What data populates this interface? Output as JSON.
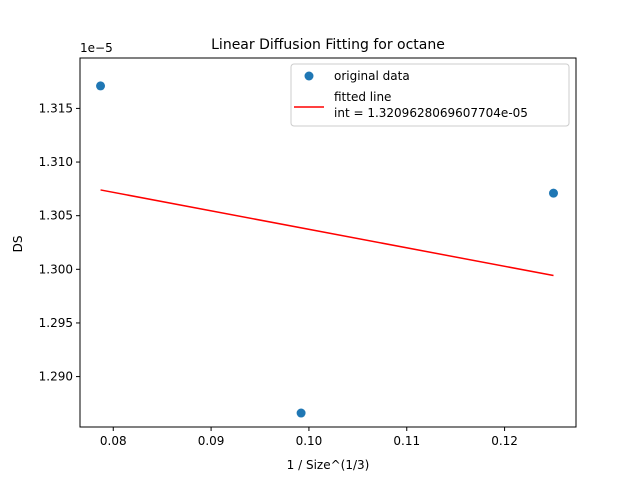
{
  "chart_data": {
    "type": "scatter",
    "title": "Linear Diffusion Fitting for octane",
    "xlabel": "1 / Size^(1/3)",
    "ylabel": "DS",
    "y_offset_label": "1e−5",
    "xlim": [
      0.0766,
      0.1273
    ],
    "ylim": [
      1.2853,
      1.3197
    ],
    "xticks": [
      0.08,
      0.09,
      0.1,
      0.11,
      0.12
    ],
    "xtick_labels": [
      "0.08",
      "0.09",
      "0.10",
      "0.11",
      "0.12"
    ],
    "yticks": [
      1.29,
      1.295,
      1.3,
      1.305,
      1.31,
      1.315
    ],
    "ytick_labels": [
      "1.290",
      "1.295",
      "1.300",
      "1.305",
      "1.310",
      "1.315"
    ],
    "grid": false,
    "legend_position": "top-right",
    "series": [
      {
        "name": "original data",
        "kind": "scatter",
        "color": "#1f77b4",
        "points": [
          {
            "x": 0.0787,
            "y": 1.3171
          },
          {
            "x": 0.0992,
            "y": 1.2866
          },
          {
            "x": 0.125,
            "y": 1.3071
          }
        ]
      },
      {
        "name": "fitted line\n int = 1.3209628069607704e-05",
        "kind": "line",
        "color": "#ff0000",
        "points": [
          {
            "x": 0.0787,
            "y": 1.3074
          },
          {
            "x": 0.125,
            "y": 1.29942
          }
        ]
      }
    ]
  }
}
